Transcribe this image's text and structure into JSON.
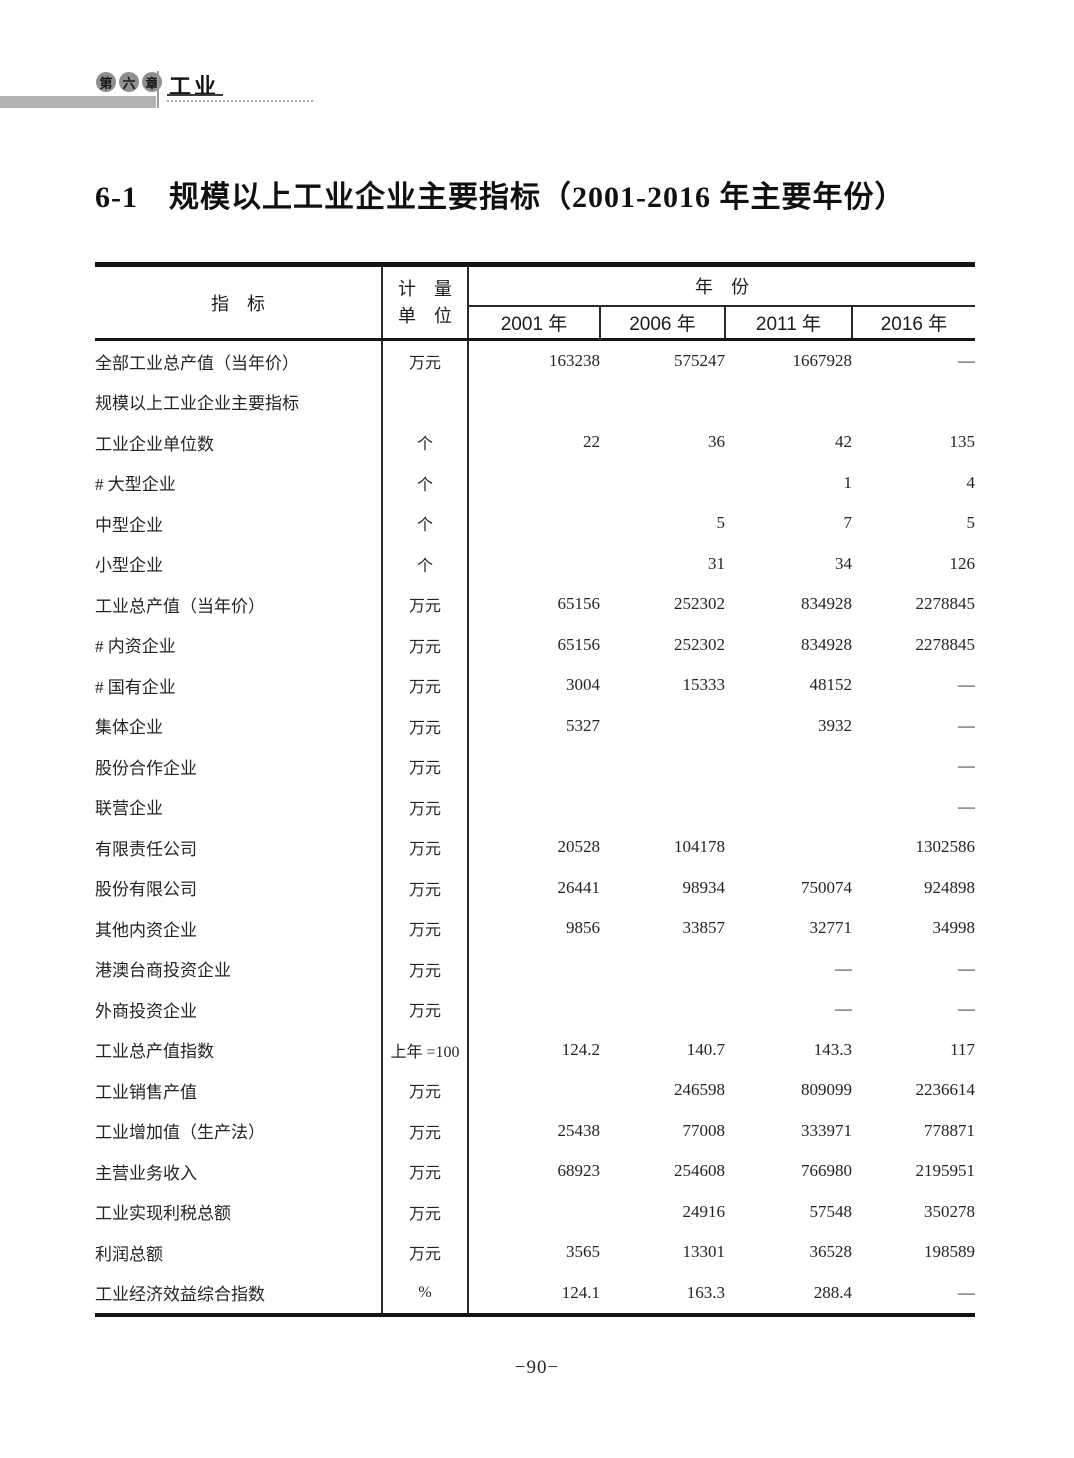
{
  "page_header": {
    "badge_chars": [
      "第",
      "六",
      "章"
    ],
    "chapter_title": "工业"
  },
  "doc_title": "6-1　规模以上工业企业主要指标（2001-2016 年主要年份）",
  "table": {
    "indicator_header": "指　标",
    "unit_header_line1": "计　量",
    "unit_header_line2": "单　位",
    "year_group_header": "年　份",
    "year_columns": [
      "2001 年",
      "2006 年",
      "2011 年",
      "2016 年"
    ],
    "rows": [
      {
        "indicator": "全部工业总产值（当年价）",
        "unit": "万元",
        "indent": 0,
        "values": [
          "163238",
          "575247",
          "1667928",
          "—"
        ]
      },
      {
        "indicator": "规模以上工业企业主要指标",
        "unit": "",
        "indent": 0,
        "values": [
          "",
          "",
          "",
          ""
        ]
      },
      {
        "indicator": "工业企业单位数",
        "unit": "个",
        "indent": 0,
        "values": [
          "22",
          "36",
          "42",
          "135"
        ]
      },
      {
        "indicator": "# 大型企业",
        "unit": "个",
        "indent": 1,
        "values": [
          "",
          "",
          "1",
          "4"
        ]
      },
      {
        "indicator": "中型企业",
        "unit": "个",
        "indent": 2,
        "values": [
          "",
          "5",
          "7",
          "5"
        ]
      },
      {
        "indicator": "小型企业",
        "unit": "个",
        "indent": 2,
        "values": [
          "",
          "31",
          "34",
          "126"
        ]
      },
      {
        "indicator": "工业总产值（当年价）",
        "unit": "万元",
        "indent": 0,
        "values": [
          "65156",
          "252302",
          "834928",
          "2278845"
        ]
      },
      {
        "indicator": "# 内资企业",
        "unit": "万元",
        "indent": 1,
        "values": [
          "65156",
          "252302",
          "834928",
          "2278845"
        ]
      },
      {
        "indicator": "# 国有企业",
        "unit": "万元",
        "indent": 1,
        "values": [
          "3004",
          "15333",
          "48152",
          "—"
        ]
      },
      {
        "indicator": "集体企业",
        "unit": "万元",
        "indent": 0,
        "values": [
          "5327",
          "",
          "3932",
          "—"
        ]
      },
      {
        "indicator": "股份合作企业",
        "unit": "万元",
        "indent": 0,
        "values": [
          "",
          "",
          "",
          "—"
        ]
      },
      {
        "indicator": "联营企业",
        "unit": "万元",
        "indent": 0,
        "values": [
          "",
          "",
          "",
          "—"
        ]
      },
      {
        "indicator": "有限责任公司",
        "unit": "万元",
        "indent": 0,
        "values": [
          "20528",
          "104178",
          "",
          "1302586"
        ]
      },
      {
        "indicator": "股份有限公司",
        "unit": "万元",
        "indent": 0,
        "values": [
          "26441",
          "98934",
          "750074",
          "924898"
        ]
      },
      {
        "indicator": "其他内资企业",
        "unit": "万元",
        "indent": 0,
        "values": [
          "9856",
          "33857",
          "32771",
          "34998"
        ]
      },
      {
        "indicator": "港澳台商投资企业",
        "unit": "万元",
        "indent": 3,
        "values": [
          "",
          "",
          "—",
          "—"
        ]
      },
      {
        "indicator": "外商投资企业",
        "unit": "万元",
        "indent": 3,
        "values": [
          "",
          "",
          "—",
          "—"
        ]
      },
      {
        "indicator": "工业总产值指数",
        "unit": "上年 =100",
        "indent": 0,
        "values": [
          "124.2",
          "140.7",
          "143.3",
          "117"
        ]
      },
      {
        "indicator": "工业销售产值",
        "unit": "万元",
        "indent": 0,
        "values": [
          "",
          "246598",
          "809099",
          "2236614"
        ]
      },
      {
        "indicator": "工业增加值（生产法）",
        "unit": "万元",
        "indent": 0,
        "values": [
          "25438",
          "77008",
          "333971",
          "778871"
        ]
      },
      {
        "indicator": "主营业务收入",
        "unit": "万元",
        "indent": 0,
        "values": [
          "68923",
          "254608",
          "766980",
          "2195951"
        ]
      },
      {
        "indicator": "工业实现利税总额",
        "unit": "万元",
        "indent": 0,
        "values": [
          "",
          "24916",
          "57548",
          "350278"
        ]
      },
      {
        "indicator": "利润总额",
        "unit": "万元",
        "indent": 0,
        "values": [
          "3565",
          "13301",
          "36528",
          "198589"
        ]
      },
      {
        "indicator": "工业经济效益综合指数",
        "unit": "%",
        "indent": 0,
        "values": [
          "124.1",
          "163.3",
          "288.4",
          "—"
        ]
      }
    ]
  },
  "footer": {
    "page_number": "−90−"
  }
}
